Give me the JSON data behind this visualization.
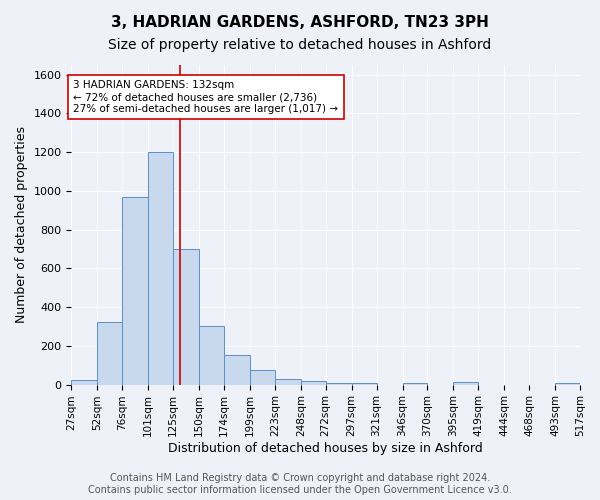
{
  "title_line1": "3, HADRIAN GARDENS, ASHFORD, TN23 3PH",
  "title_line2": "Size of property relative to detached houses in Ashford",
  "xlabel": "Distribution of detached houses by size in Ashford",
  "ylabel": "Number of detached properties",
  "bar_edges": [
    27,
    52,
    76,
    101,
    125,
    150,
    174,
    199,
    223,
    248,
    272,
    297,
    321,
    346,
    370,
    395,
    419,
    444,
    468,
    493,
    517
  ],
  "bar_heights": [
    25,
    325,
    970,
    1200,
    700,
    305,
    155,
    75,
    30,
    20,
    10,
    10,
    0,
    10,
    0,
    15,
    0,
    0,
    0,
    10
  ],
  "bar_color": "#c8d9ee",
  "bar_edge_color": "#5b8fc9",
  "bg_color": "#eef2f8",
  "grid_color": "#ffffff",
  "property_line_x": 132,
  "property_line_color": "#cc0000",
  "annotation_text": "3 HADRIAN GARDENS: 132sqm\n← 72% of detached houses are smaller (2,736)\n27% of semi-detached houses are larger (1,017) →",
  "annotation_box_color": "#ffffff",
  "annotation_border_color": "#cc0000",
  "ylim": [
    0,
    1650
  ],
  "yticks": [
    0,
    200,
    400,
    600,
    800,
    1000,
    1200,
    1400,
    1600
  ],
  "tick_labels": [
    "27sqm",
    "52sqm",
    "76sqm",
    "101sqm",
    "125sqm",
    "150sqm",
    "174sqm",
    "199sqm",
    "223sqm",
    "248sqm",
    "272sqm",
    "297sqm",
    "321sqm",
    "346sqm",
    "370sqm",
    "395sqm",
    "419sqm",
    "444sqm",
    "468sqm",
    "493sqm",
    "517sqm"
  ],
  "footer_text": "Contains HM Land Registry data © Crown copyright and database right 2024.\nContains public sector information licensed under the Open Government Licence v3.0.",
  "title_fontsize": 11,
  "subtitle_fontsize": 10,
  "axis_label_fontsize": 9,
  "tick_fontsize": 7.5,
  "footer_fontsize": 7
}
